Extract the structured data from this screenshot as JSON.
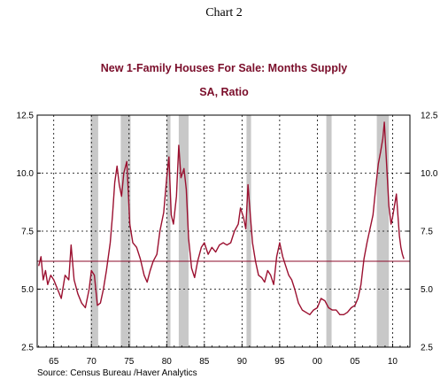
{
  "chart_label": "Chart 2",
  "chart_data": {
    "type": "line",
    "title": "New 1-Family Houses For Sale: Months Supply",
    "subtitle": "SA, Ratio",
    "xlabel": "",
    "ylabel": "",
    "xlim": [
      1962.8,
      2012.3
    ],
    "ylim": [
      2.5,
      12.5
    ],
    "x_ticks": [
      1965,
      1970,
      1975,
      1980,
      1985,
      1990,
      1995,
      2000,
      2005,
      2010
    ],
    "x_tick_labels": [
      "65",
      "70",
      "75",
      "80",
      "85",
      "90",
      "95",
      "00",
      "05",
      "10"
    ],
    "y_ticks": [
      2.5,
      5.0,
      7.5,
      10.0,
      12.5
    ],
    "y_tick_labels": [
      "2.5",
      "5.0",
      "7.5",
      "10.0",
      "12.5"
    ],
    "grid": true,
    "source": "Source:  Census Bureau /Haver Analytics",
    "reference_line": {
      "value": 6.2,
      "color": "#8b0a2a"
    },
    "recession_shading": [
      [
        1969.9,
        1970.9
      ],
      [
        1973.9,
        1975.2
      ],
      [
        1980.0,
        1980.5
      ],
      [
        1981.6,
        1982.9
      ],
      [
        1990.6,
        1991.2
      ],
      [
        2001.2,
        2001.9
      ],
      [
        2007.9,
        2009.5
      ]
    ],
    "series": [
      {
        "color": "#9b1030",
        "points": [
          [
            1963.0,
            6.0
          ],
          [
            1963.3,
            6.4
          ],
          [
            1963.6,
            5.4
          ],
          [
            1963.9,
            5.8
          ],
          [
            1964.2,
            5.2
          ],
          [
            1964.6,
            5.6
          ],
          [
            1965.0,
            5.4
          ],
          [
            1965.5,
            5.0
          ],
          [
            1966.0,
            4.6
          ],
          [
            1966.5,
            5.6
          ],
          [
            1967.0,
            5.4
          ],
          [
            1967.3,
            6.9
          ],
          [
            1967.7,
            5.4
          ],
          [
            1968.2,
            4.8
          ],
          [
            1968.7,
            4.4
          ],
          [
            1969.2,
            4.2
          ],
          [
            1969.7,
            5.0
          ],
          [
            1970.0,
            5.8
          ],
          [
            1970.4,
            5.6
          ],
          [
            1970.8,
            4.3
          ],
          [
            1971.2,
            4.4
          ],
          [
            1971.6,
            5.0
          ],
          [
            1972.0,
            5.8
          ],
          [
            1972.5,
            7.0
          ],
          [
            1972.8,
            8.2
          ],
          [
            1973.1,
            9.6
          ],
          [
            1973.4,
            10.3
          ],
          [
            1973.7,
            9.5
          ],
          [
            1974.0,
            9.0
          ],
          [
            1974.3,
            10.0
          ],
          [
            1974.7,
            10.5
          ],
          [
            1974.9,
            9.2
          ],
          [
            1975.1,
            7.8
          ],
          [
            1975.5,
            7.0
          ],
          [
            1976.0,
            6.8
          ],
          [
            1976.5,
            6.3
          ],
          [
            1977.0,
            5.6
          ],
          [
            1977.4,
            5.3
          ],
          [
            1977.8,
            5.8
          ],
          [
            1978.2,
            6.2
          ],
          [
            1978.7,
            6.5
          ],
          [
            1979.1,
            7.5
          ],
          [
            1979.6,
            8.3
          ],
          [
            1980.0,
            9.8
          ],
          [
            1980.3,
            10.7
          ],
          [
            1980.6,
            8.2
          ],
          [
            1980.9,
            7.8
          ],
          [
            1981.3,
            9.0
          ],
          [
            1981.6,
            11.2
          ],
          [
            1981.9,
            9.8
          ],
          [
            1982.3,
            10.2
          ],
          [
            1982.6,
            9.3
          ],
          [
            1982.9,
            7.2
          ],
          [
            1983.3,
            5.9
          ],
          [
            1983.7,
            5.5
          ],
          [
            1984.1,
            6.2
          ],
          [
            1984.6,
            6.8
          ],
          [
            1985.0,
            7.0
          ],
          [
            1985.5,
            6.5
          ],
          [
            1986.0,
            6.8
          ],
          [
            1986.5,
            6.6
          ],
          [
            1987.0,
            6.9
          ],
          [
            1987.5,
            7.0
          ],
          [
            1988.0,
            6.9
          ],
          [
            1988.5,
            7.0
          ],
          [
            1989.0,
            7.5
          ],
          [
            1989.5,
            7.8
          ],
          [
            1989.8,
            8.5
          ],
          [
            1990.2,
            8.1
          ],
          [
            1990.5,
            7.6
          ],
          [
            1990.8,
            9.5
          ],
          [
            1991.1,
            8.2
          ],
          [
            1991.4,
            7.0
          ],
          [
            1991.8,
            6.2
          ],
          [
            1992.2,
            5.6
          ],
          [
            1992.6,
            5.5
          ],
          [
            1993.0,
            5.3
          ],
          [
            1993.4,
            5.8
          ],
          [
            1993.8,
            5.6
          ],
          [
            1994.2,
            5.2
          ],
          [
            1994.6,
            6.4
          ],
          [
            1995.0,
            7.0
          ],
          [
            1995.4,
            6.4
          ],
          [
            1995.8,
            6.0
          ],
          [
            1996.2,
            5.6
          ],
          [
            1996.6,
            5.4
          ],
          [
            1997.0,
            5.0
          ],
          [
            1997.5,
            4.4
          ],
          [
            1998.0,
            4.1
          ],
          [
            1998.5,
            4.0
          ],
          [
            1999.0,
            3.9
          ],
          [
            1999.5,
            4.1
          ],
          [
            2000.0,
            4.2
          ],
          [
            2000.5,
            4.6
          ],
          [
            2001.0,
            4.5
          ],
          [
            2001.5,
            4.2
          ],
          [
            2002.0,
            4.1
          ],
          [
            2002.5,
            4.1
          ],
          [
            2003.0,
            3.9
          ],
          [
            2003.5,
            3.9
          ],
          [
            2004.0,
            4.0
          ],
          [
            2004.5,
            4.2
          ],
          [
            2005.0,
            4.3
          ],
          [
            2005.4,
            4.6
          ],
          [
            2005.8,
            5.2
          ],
          [
            2006.2,
            6.3
          ],
          [
            2006.6,
            7.0
          ],
          [
            2007.0,
            7.6
          ],
          [
            2007.4,
            8.2
          ],
          [
            2007.8,
            9.5
          ],
          [
            2008.1,
            10.4
          ],
          [
            2008.4,
            10.9
          ],
          [
            2008.7,
            11.5
          ],
          [
            2008.9,
            12.2
          ],
          [
            2009.1,
            11.0
          ],
          [
            2009.3,
            9.8
          ],
          [
            2009.5,
            8.6
          ],
          [
            2009.8,
            7.8
          ],
          [
            2010.0,
            8.1
          ],
          [
            2010.3,
            8.7
          ],
          [
            2010.5,
            9.1
          ],
          [
            2010.7,
            8.2
          ],
          [
            2010.9,
            7.3
          ],
          [
            2011.1,
            6.8
          ],
          [
            2011.3,
            6.5
          ],
          [
            2011.5,
            6.3
          ]
        ]
      }
    ]
  }
}
